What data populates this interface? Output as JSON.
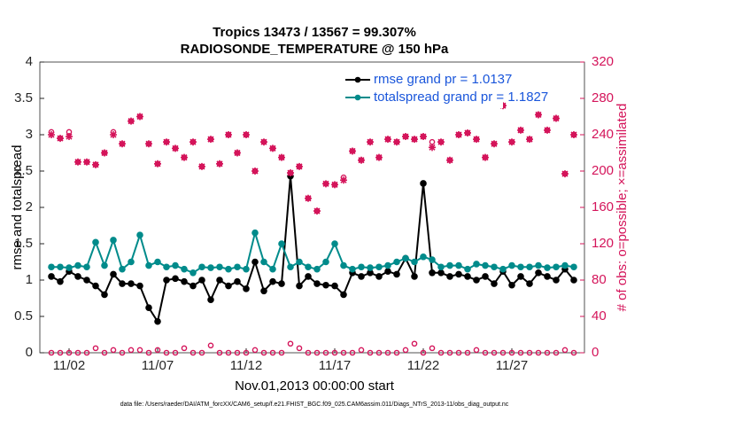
{
  "chart_data": {
    "type": "line",
    "title": "Tropics 13473 / 13567 = 99.307%",
    "subtitle": "RADIOSONDE_TEMPERATURE @ 150 hPa",
    "xlabel": "Nov.01,2013 00:00:00 start",
    "ylabel": "rmse and totalspread",
    "y2label": "# of obs: o=possible; ×=assimilated",
    "footnote": "data file: /Users/raeder/DAI/ATM_forcXX/CAM6_setup/f.e21.FHIST_BGC.f09_025.CAM6assim.011/Diags_NTrS_2013-11/obs_diag_output.nc",
    "legend": "upper center",
    "legend_color": "#1a56db",
    "x": [
      1,
      1.5,
      2,
      2.5,
      3,
      3.5,
      4,
      4.5,
      5,
      5.5,
      6,
      6.5,
      7,
      7.5,
      8,
      8.5,
      9,
      9.5,
      10,
      10.5,
      11,
      11.5,
      12,
      12.5,
      13,
      13.5,
      14,
      14.5,
      15,
      15.5,
      16,
      16.5,
      17,
      17.5,
      18,
      18.5,
      19,
      19.5,
      20,
      20.5,
      21,
      21.5,
      22,
      22.5,
      23,
      23.5,
      24,
      24.5,
      25,
      25.5,
      26,
      26.5,
      27,
      27.5,
      28,
      28.5,
      29,
      29.5,
      30,
      30.5
    ],
    "xlim": [
      0.35,
      31.1
    ],
    "xticks": [
      {
        "value": 2,
        "label": "11/02"
      },
      {
        "value": 7,
        "label": "11/07"
      },
      {
        "value": 12,
        "label": "11/12"
      },
      {
        "value": 17,
        "label": "11/17"
      },
      {
        "value": 22,
        "label": "11/22"
      },
      {
        "value": 27,
        "label": "11/27"
      }
    ],
    "ylim": [
      0,
      4
    ],
    "yticks": [
      0,
      0.5,
      1,
      1.5,
      2,
      2.5,
      3,
      3.5,
      4
    ],
    "y2lim": [
      0,
      320
    ],
    "y2ticks": [
      0,
      40,
      80,
      120,
      160,
      200,
      240,
      280,
      320
    ],
    "y2color": "#d4145a",
    "series": [
      {
        "name": "rmse grand pr = 1.0137",
        "color": "#000000",
        "marker": "filled",
        "linestyle": "solid",
        "values": [
          1.05,
          0.98,
          1.12,
          1.05,
          1.0,
          0.92,
          0.8,
          1.08,
          0.95,
          0.95,
          0.92,
          0.62,
          0.43,
          1.0,
          1.02,
          0.98,
          0.92,
          1.0,
          0.73,
          1.0,
          0.92,
          0.98,
          0.88,
          1.25,
          0.85,
          0.98,
          0.95,
          2.43,
          0.92,
          1.05,
          0.95,
          0.93,
          0.92,
          0.8,
          1.1,
          1.05,
          1.1,
          1.05,
          1.12,
          1.08,
          1.3,
          1.05,
          2.33,
          1.1,
          1.1,
          1.05,
          1.08,
          1.05,
          1.0,
          1.05,
          0.95,
          1.12,
          0.93,
          1.05,
          0.95,
          1.1,
          1.05,
          1.0,
          1.15,
          1.0
        ]
      },
      {
        "name": "totalspread grand pr = 1.1827",
        "color": "#008b8b",
        "marker": "filled",
        "linestyle": "solid",
        "values": [
          1.18,
          1.18,
          1.17,
          1.2,
          1.18,
          1.52,
          1.2,
          1.55,
          1.15,
          1.25,
          1.62,
          1.2,
          1.25,
          1.18,
          1.2,
          1.15,
          1.1,
          1.18,
          1.17,
          1.18,
          1.15,
          1.18,
          1.15,
          1.65,
          1.25,
          1.15,
          1.5,
          1.18,
          1.25,
          1.18,
          1.15,
          1.25,
          1.5,
          1.2,
          1.15,
          1.18,
          1.17,
          1.18,
          1.2,
          1.25,
          1.3,
          1.25,
          1.32,
          1.28,
          1.18,
          1.2,
          1.2,
          1.15,
          1.22,
          1.2,
          1.18,
          1.15,
          1.2,
          1.18,
          1.18,
          1.2,
          1.17,
          1.18,
          1.2,
          1.18
        ]
      },
      {
        "axis": "y2",
        "color": "#d4145a",
        "marker": "open",
        "linestyle": "none",
        "values": [
          243,
          236,
          243,
          210,
          210,
          207,
          220,
          243,
          230,
          255,
          260,
          230,
          208,
          232,
          225,
          215,
          232,
          205,
          235,
          208,
          240,
          220,
          240,
          200,
          232,
          225,
          215,
          198,
          205,
          170,
          156,
          186,
          185,
          193,
          222,
          212,
          232,
          215,
          235,
          232,
          238,
          235,
          238,
          232,
          232,
          212,
          240,
          242,
          235,
          215,
          230,
          272,
          232,
          245,
          235,
          262,
          245,
          258,
          197,
          240
        ]
      },
      {
        "axis": "y2",
        "color": "#d4145a",
        "marker": "star",
        "linestyle": "none",
        "values": [
          240,
          236,
          238,
          210,
          210,
          207,
          220,
          240,
          230,
          255,
          260,
          230,
          208,
          232,
          225,
          215,
          232,
          205,
          235,
          208,
          240,
          220,
          240,
          200,
          232,
          225,
          215,
          198,
          205,
          170,
          156,
          186,
          185,
          190,
          222,
          212,
          232,
          215,
          235,
          232,
          238,
          235,
          238,
          226,
          232,
          212,
          240,
          242,
          235,
          215,
          230,
          272,
          232,
          245,
          235,
          262,
          245,
          258,
          197,
          240
        ]
      },
      {
        "axis": "y2",
        "color": "#d4145a",
        "marker": "open",
        "linestyle": "none",
        "values": [
          0,
          0,
          0,
          0,
          0,
          5,
          0,
          3,
          0,
          3,
          3,
          0,
          3,
          0,
          0,
          5,
          0,
          0,
          8,
          0,
          0,
          0,
          0,
          3,
          0,
          0,
          0,
          10,
          5,
          0,
          0,
          0,
          0,
          0,
          0,
          3,
          0,
          0,
          0,
          0,
          3,
          10,
          0,
          5,
          0,
          0,
          0,
          0,
          3,
          0,
          0,
          0,
          0,
          0,
          0,
          0,
          0,
          0,
          3,
          0
        ]
      }
    ]
  }
}
